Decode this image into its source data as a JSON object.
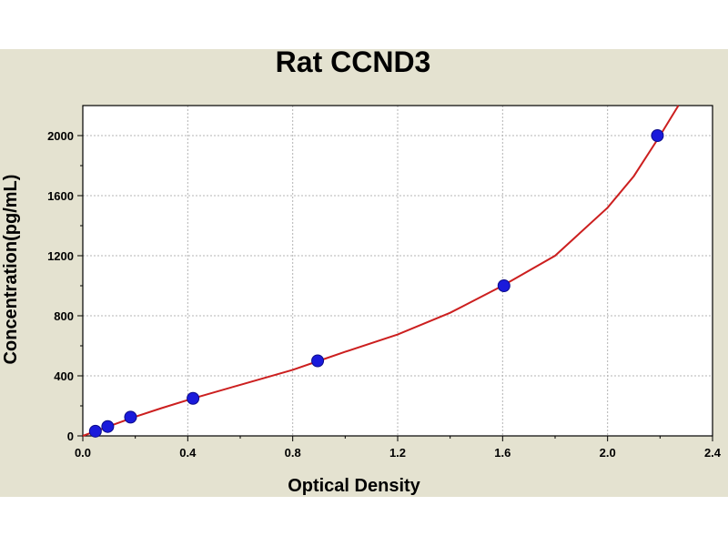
{
  "chart_data": {
    "type": "scatter",
    "title": "Rat CCND3",
    "xlabel": "Optical Density",
    "ylabel": "Concentration(pg/mL)",
    "xlim": [
      0,
      2.4
    ],
    "ylim": [
      0,
      2200
    ],
    "x_ticks": [
      "0.0",
      "0.4",
      "0.8",
      "1.2",
      "1.6",
      "2.0",
      "2.4"
    ],
    "y_ticks": [
      "0",
      "400",
      "800",
      "1200",
      "1600",
      "2000"
    ],
    "grid": true,
    "series": [
      {
        "points": [
          {
            "x": 0.048,
            "y": 31.25
          },
          {
            "x": 0.095,
            "y": 62.5
          },
          {
            "x": 0.182,
            "y": 125
          },
          {
            "x": 0.42,
            "y": 250
          },
          {
            "x": 0.895,
            "y": 500
          },
          {
            "x": 1.605,
            "y": 1000
          },
          {
            "x": 2.19,
            "y": 2000
          }
        ],
        "color": "#1a1adb"
      }
    ],
    "fit_curve": {
      "color": "#cc1f1f",
      "points": [
        {
          "x": 0.0,
          "y": 0
        },
        {
          "x": 0.05,
          "y": 32
        },
        {
          "x": 0.1,
          "y": 64
        },
        {
          "x": 0.2,
          "y": 128
        },
        {
          "x": 0.3,
          "y": 185
        },
        {
          "x": 0.42,
          "y": 250
        },
        {
          "x": 0.6,
          "y": 340
        },
        {
          "x": 0.8,
          "y": 440
        },
        {
          "x": 0.9,
          "y": 500
        },
        {
          "x": 1.0,
          "y": 560
        },
        {
          "x": 1.2,
          "y": 675
        },
        {
          "x": 1.4,
          "y": 820
        },
        {
          "x": 1.6,
          "y": 1000
        },
        {
          "x": 1.8,
          "y": 1200
        },
        {
          "x": 2.0,
          "y": 1520
        },
        {
          "x": 2.1,
          "y": 1730
        },
        {
          "x": 2.2,
          "y": 2000
        },
        {
          "x": 2.27,
          "y": 2200
        }
      ]
    }
  }
}
